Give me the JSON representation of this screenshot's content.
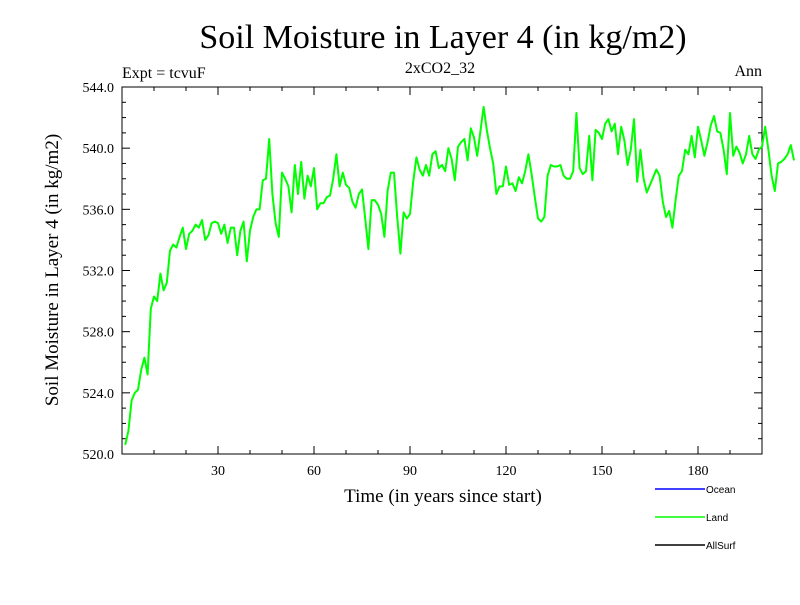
{
  "chart_data": {
    "type": "line",
    "title": "Soil Moisture in Layer 4 (in kg/m2)",
    "subtitle": "2xCO2_32",
    "expt_label": "Expt = tcvuF",
    "period_label": "Ann",
    "xlabel": "Time (in years since start)",
    "ylabel": "Soil Moisture in Layer 4 (in kg/m2)",
    "xlim": [
      0,
      200
    ],
    "ylim": [
      520,
      544
    ],
    "x_ticks": [
      30,
      60,
      90,
      120,
      150,
      180
    ],
    "x_tick_labels": [
      "30",
      "60",
      "90",
      "120",
      "150",
      "180"
    ],
    "y_ticks": [
      520,
      524,
      528,
      532,
      536,
      540,
      544
    ],
    "y_tick_labels": [
      "520.0",
      "524.0",
      "528.0",
      "532.0",
      "536.0",
      "540.0",
      "544.0"
    ],
    "legend": [
      {
        "name": "Ocean",
        "color": "#0000ff"
      },
      {
        "name": "Land",
        "color": "#00ff00"
      },
      {
        "name": "AllSurf",
        "color": "#000000"
      }
    ],
    "series": [
      {
        "name": "Land",
        "color": "#00ff00",
        "x_start": 1,
        "x_step": 1,
        "values": [
          520.6,
          521.5,
          523.5,
          524.0,
          524.2,
          525.5,
          526.3,
          525.2,
          529.5,
          530.3,
          530.0,
          531.8,
          530.7,
          531.2,
          533.3,
          533.7,
          533.5,
          534.2,
          534.8,
          533.4,
          534.4,
          534.6,
          535.0,
          534.8,
          535.3,
          534.0,
          534.3,
          535.1,
          535.2,
          535.1,
          534.4,
          535.0,
          533.8,
          534.8,
          534.8,
          533.0,
          534.6,
          535.2,
          532.6,
          534.6,
          535.5,
          536.0,
          536.0,
          537.9,
          538.0,
          540.6,
          537.0,
          535.1,
          534.2,
          538.4,
          538.0,
          537.5,
          535.8,
          538.9,
          537.0,
          539.1,
          536.7,
          538.2,
          537.5,
          538.7,
          536.0,
          536.4,
          536.4,
          536.8,
          536.9,
          538.0,
          539.6,
          537.5,
          538.4,
          537.6,
          537.4,
          536.5,
          536.1,
          537.0,
          537.3,
          535.4,
          533.4,
          536.6,
          536.6,
          536.3,
          535.7,
          534.2,
          537.2,
          538.4,
          538.4,
          535.5,
          533.1,
          535.8,
          535.4,
          535.7,
          537.8,
          539.4,
          538.6,
          538.2,
          538.9,
          538.2,
          539.6,
          539.8,
          538.7,
          538.9,
          538.5,
          540.0,
          539.3,
          537.9,
          540.1,
          540.4,
          540.6,
          539.2,
          541.3,
          540.7,
          539.5,
          541.1,
          542.7,
          541.2,
          540.0,
          539.0,
          537.0,
          537.5,
          537.5,
          538.8,
          537.6,
          537.7,
          537.2,
          538.1,
          537.7,
          538.5,
          539.6,
          538.3,
          536.8,
          535.4,
          535.2,
          535.5,
          538.2,
          538.9,
          538.8,
          538.8,
          538.9,
          538.2,
          538.0,
          538.0,
          538.5,
          542.3,
          538.7,
          538.3,
          538.5,
          540.8,
          537.9,
          541.2,
          541.0,
          540.6,
          541.6,
          541.9,
          541.1,
          541.6,
          539.6,
          541.4,
          540.5,
          538.9,
          539.9,
          541.9,
          537.8,
          539.9,
          538.0,
          537.1,
          537.6,
          538.1,
          538.6,
          538.2,
          536.5,
          535.5,
          535.9,
          534.8,
          536.6,
          538.2,
          538.5,
          539.9,
          539.6,
          540.8,
          539.4,
          541.4,
          540.5,
          539.5,
          540.4,
          541.5,
          542.1,
          541.1,
          541.0,
          539.9,
          538.3,
          542.3,
          539.5,
          540.1,
          539.7,
          539.0,
          539.6,
          540.8,
          539.6,
          539.3,
          539.9,
          540.1,
          541.4,
          539.9,
          538.2,
          537.2,
          539.0,
          539.1,
          539.3,
          539.6,
          540.2,
          539.2
        ]
      }
    ]
  }
}
